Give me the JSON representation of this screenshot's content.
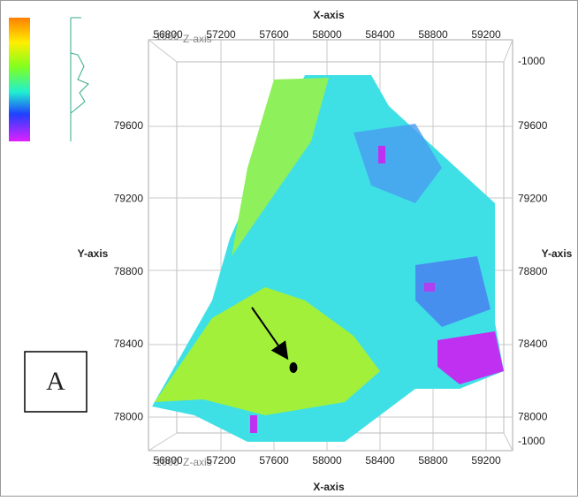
{
  "x_axis": {
    "title": "X-axis",
    "ticks": [
      56800,
      57200,
      57600,
      58000,
      58400,
      58800,
      59200
    ]
  },
  "y_axis": {
    "title": "Y-axis",
    "ticks": [
      79600,
      79200,
      78800,
      78400,
      78000
    ]
  },
  "z_axis": {
    "title": "Z-axis",
    "ticks": [
      -1000
    ]
  },
  "panel_label": "A"
}
